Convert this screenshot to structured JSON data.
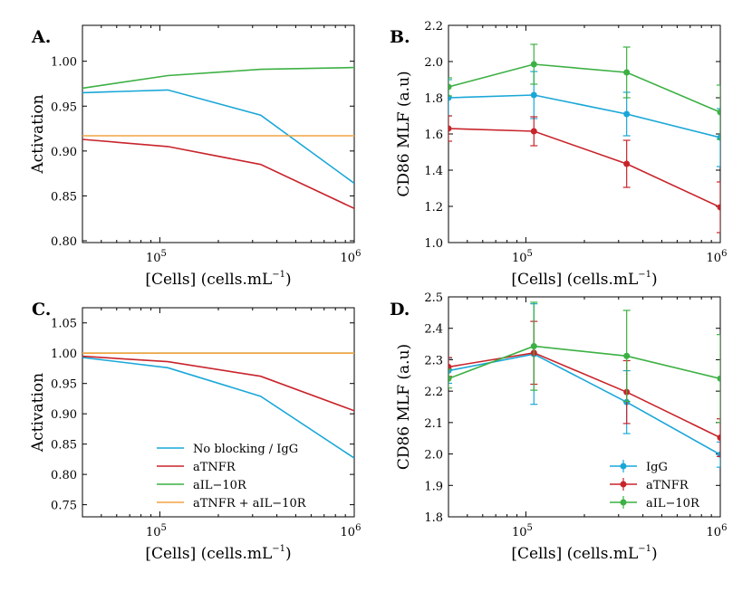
{
  "chart_data": [
    {
      "id": "A",
      "panel_label": "A.",
      "type": "line",
      "xscale": "log",
      "xlim": [
        40000,
        1000000
      ],
      "xticks": [
        100000,
        1000000
      ],
      "xtick_labels": [
        {
          "base": "10",
          "exp": "5"
        },
        {
          "base": "10",
          "exp": "6"
        }
      ],
      "xlabel": {
        "main": "[Cells] (cells.mL",
        "exp": "−1",
        "tail": ")"
      },
      "ylabel": "Activation",
      "ylim": [
        0.798,
        1.04
      ],
      "yticks": [
        0.8,
        0.85,
        0.9,
        0.95,
        1.0
      ],
      "ytick_labels": [
        "0.80",
        "0.85",
        "0.90",
        "0.95",
        "1.00"
      ],
      "series": [
        {
          "name": "No blocking / IgG",
          "color": "#1aa7d8",
          "x": [
            40000,
            110000,
            330000,
            1000000
          ],
          "y": [
            0.965,
            0.968,
            0.94,
            0.864
          ]
        },
        {
          "name": "aTNFR",
          "color": "#c8242b",
          "x": [
            40000,
            110000,
            330000,
            1000000
          ],
          "y": [
            0.913,
            0.905,
            0.885,
            0.836
          ]
        },
        {
          "name": "aIL−10R",
          "color": "#3cb043",
          "x": [
            40000,
            110000,
            330000,
            1000000
          ],
          "y": [
            0.97,
            0.984,
            0.991,
            0.993
          ]
        },
        {
          "name": "aTNFR + aIL−10R",
          "color": "#f4a341",
          "x": [
            40000,
            1000000
          ],
          "y": [
            0.917,
            0.917
          ]
        }
      ]
    },
    {
      "id": "B",
      "panel_label": "B.",
      "type": "line",
      "xscale": "log",
      "xlim": [
        40000,
        1000000
      ],
      "xticks": [
        100000,
        1000000
      ],
      "xtick_labels": [
        {
          "base": "10",
          "exp": "5"
        },
        {
          "base": "10",
          "exp": "6"
        }
      ],
      "xlabel": {
        "main": "[Cells] (cells.mL",
        "exp": "−1",
        "tail": ")"
      },
      "ylabel": "CD86 MLF (a.u)",
      "ylim": [
        1.0,
        2.2
      ],
      "yticks": [
        1.0,
        1.2,
        1.4,
        1.6,
        1.8,
        2.0,
        2.2
      ],
      "ytick_labels": [
        "1.0",
        "1.2",
        "1.4",
        "1.6",
        "1.8",
        "2.0",
        "2.2"
      ],
      "series": [
        {
          "name": "IgG",
          "color": "#1aa7d8",
          "x": [
            40000,
            110000,
            330000,
            1000000
          ],
          "y": [
            1.8,
            1.815,
            1.71,
            1.58
          ],
          "err": [
            0.1,
            0.13,
            0.12,
            0.16
          ]
        },
        {
          "name": "aTNFR",
          "color": "#c8242b",
          "x": [
            40000,
            110000,
            330000,
            1000000
          ],
          "y": [
            1.63,
            1.615,
            1.435,
            1.195
          ],
          "err": [
            0.07,
            0.08,
            0.13,
            0.14
          ]
        },
        {
          "name": "aIL−10R",
          "color": "#3cb043",
          "x": [
            40000,
            110000,
            330000,
            1000000
          ],
          "y": [
            1.86,
            1.985,
            1.94,
            1.72
          ],
          "err": [
            0.05,
            0.11,
            0.14,
            0.15
          ]
        }
      ]
    },
    {
      "id": "C",
      "panel_label": "C.",
      "type": "line",
      "xscale": "log",
      "xlim": [
        40000,
        1000000
      ],
      "xticks": [
        100000,
        1000000
      ],
      "xtick_labels": [
        {
          "base": "10",
          "exp": "5"
        },
        {
          "base": "10",
          "exp": "6"
        }
      ],
      "xlabel": {
        "main": "[Cells] (cells.mL",
        "exp": "−1",
        "tail": ")"
      },
      "ylabel": "Activation",
      "ylim": [
        0.73,
        1.075
      ],
      "yticks": [
        0.75,
        0.8,
        0.85,
        0.9,
        0.95,
        1.0,
        1.05
      ],
      "ytick_labels": [
        "0.75",
        "0.80",
        "0.85",
        "0.90",
        "0.95",
        "1.00",
        "1.05"
      ],
      "legend_position": "lower-right",
      "series": [
        {
          "name": "No blocking / IgG",
          "color": "#1aa7d8",
          "x": [
            40000,
            110000,
            330000,
            1000000
          ],
          "y": [
            0.993,
            0.976,
            0.929,
            0.827
          ]
        },
        {
          "name": "aTNFR",
          "color": "#c8242b",
          "x": [
            40000,
            110000,
            330000,
            1000000
          ],
          "y": [
            0.995,
            0.986,
            0.962,
            0.905
          ]
        },
        {
          "name": "aIL−10R",
          "color": "#3cb043",
          "x": [
            40000,
            1000000
          ],
          "y": [
            1.0,
            1.0
          ]
        },
        {
          "name": "aTNFR + aIL−10R",
          "color": "#f4a341",
          "x": [
            40000,
            1000000
          ],
          "y": [
            1.0,
            1.0
          ]
        }
      ]
    },
    {
      "id": "D",
      "panel_label": "D.",
      "type": "line",
      "xscale": "log",
      "xlim": [
        40000,
        1000000
      ],
      "xticks": [
        100000,
        1000000
      ],
      "xtick_labels": [
        {
          "base": "10",
          "exp": "5"
        },
        {
          "base": "10",
          "exp": "6"
        }
      ],
      "xlabel": {
        "main": "[Cells] (cells.mL",
        "exp": "−1",
        "tail": ")"
      },
      "ylabel": "CD86 MLF (a.u)",
      "ylim": [
        1.8,
        2.5
      ],
      "yticks": [
        1.8,
        1.9,
        2.0,
        2.1,
        2.2,
        2.3,
        2.4,
        2.5
      ],
      "ytick_labels": [
        "1.8",
        "1.9",
        "2.0",
        "2.1",
        "2.2",
        "2.3",
        "2.4",
        "2.5"
      ],
      "legend_position": "lower-right",
      "series": [
        {
          "name": "IgG",
          "color": "#1aa7d8",
          "x": [
            40000,
            110000,
            330000,
            1000000
          ],
          "y": [
            2.265,
            2.318,
            2.165,
            1.998
          ],
          "err": [
            0.04,
            0.16,
            0.1,
            0.04
          ]
        },
        {
          "name": "aTNFR",
          "color": "#c8242b",
          "x": [
            40000,
            110000,
            330000,
            1000000
          ],
          "y": [
            2.277,
            2.322,
            2.197,
            2.052
          ],
          "err": [
            0.03,
            0.1,
            0.1,
            0.06
          ]
        },
        {
          "name": "aIL−10R",
          "color": "#3cb043",
          "x": [
            40000,
            110000,
            330000,
            1000000
          ],
          "y": [
            2.24,
            2.343,
            2.312,
            2.24
          ],
          "err": [
            0.03,
            0.14,
            0.145,
            0.14
          ]
        }
      ]
    }
  ]
}
